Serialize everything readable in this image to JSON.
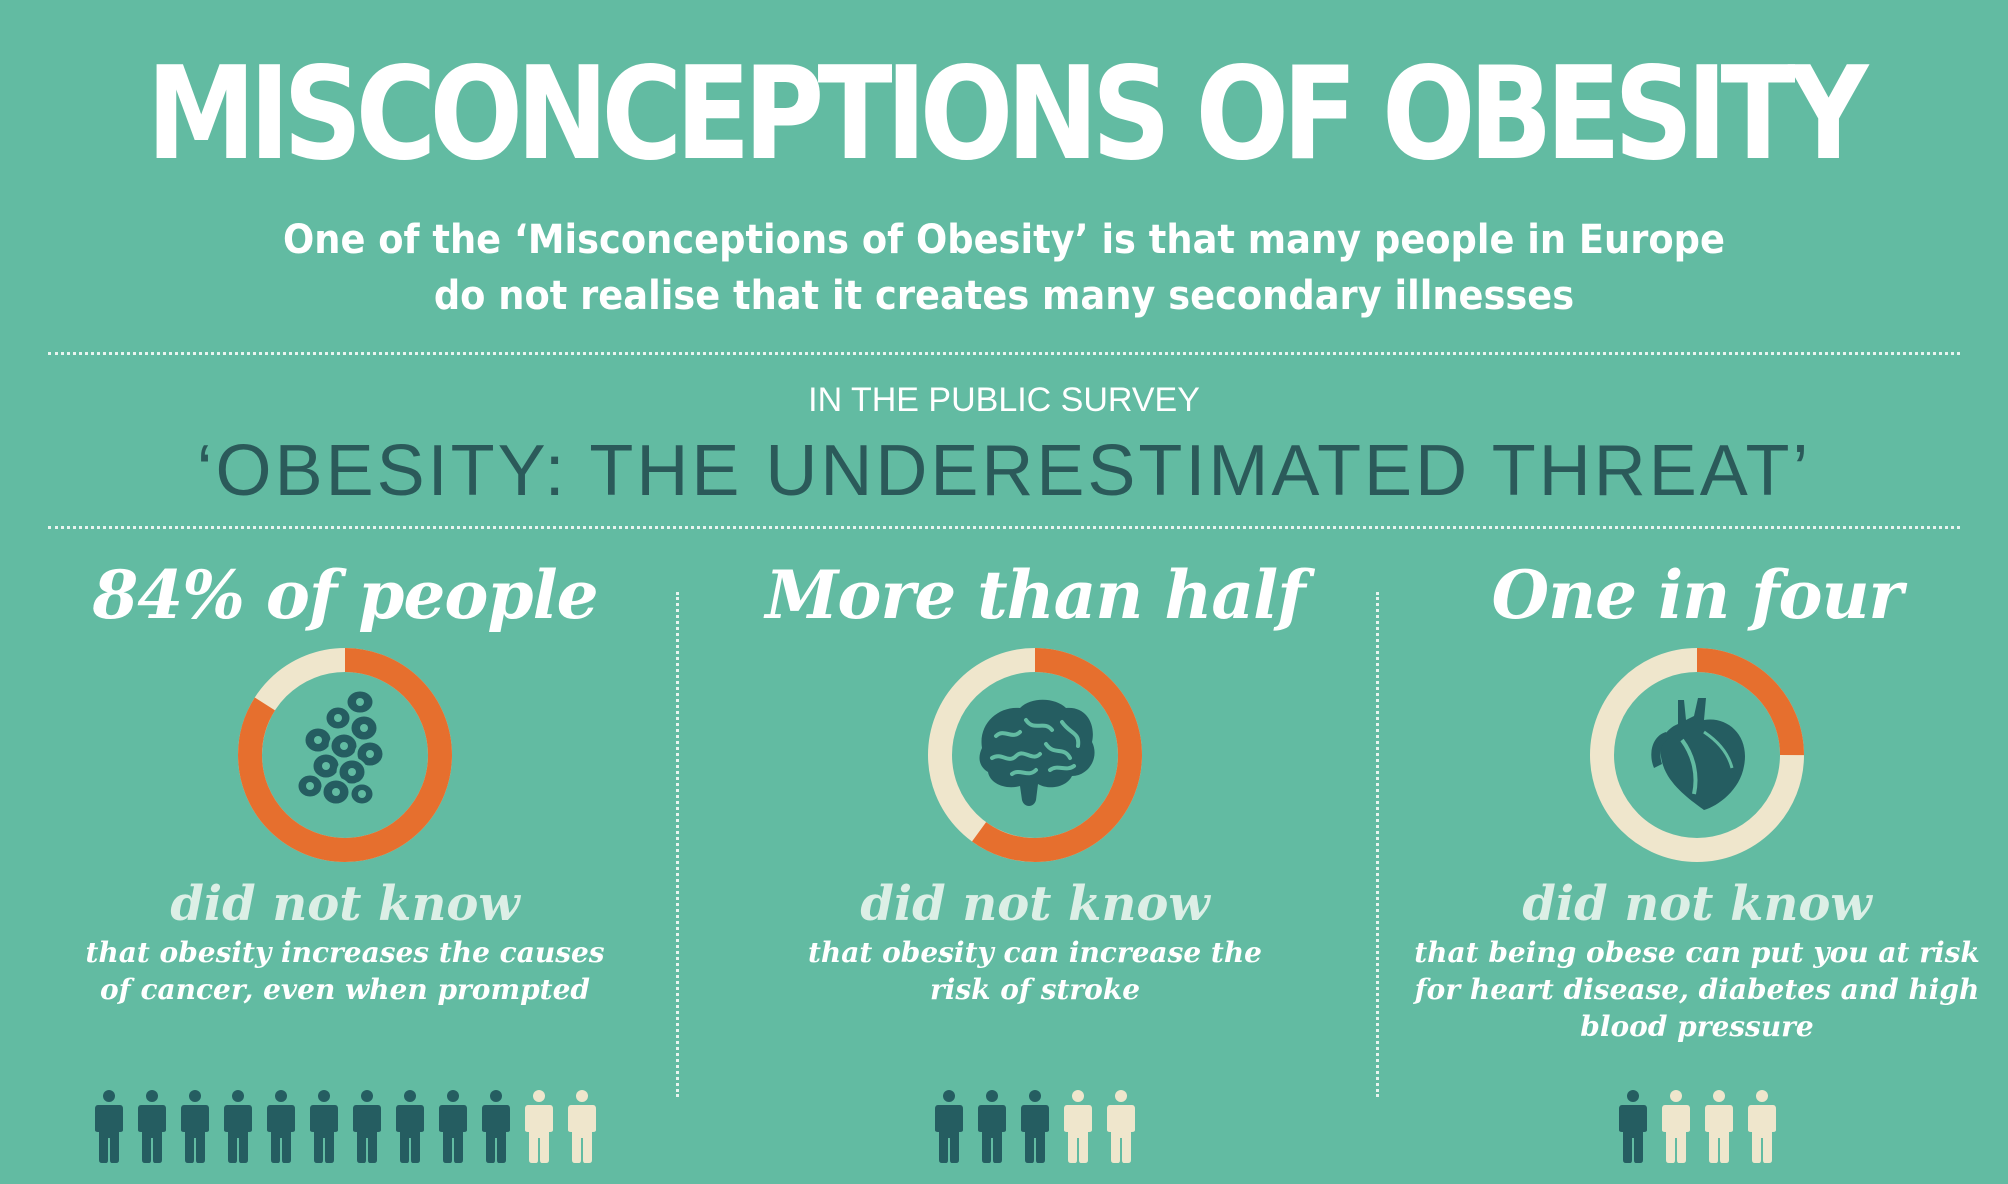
{
  "header": {
    "title": "MISCONCEPTIONS OF OBESITY",
    "subtitle": "One of the ‘Misconceptions of Obesity’ is that many people in Europe do not realise that it creates many secondary illnesses"
  },
  "survey": {
    "intro": "IN THE PUBLIC SURVEY",
    "name": "‘OBESITY: THE UNDERESTIMATED THREAT’"
  },
  "colors": {
    "background": "#62bba2",
    "accent_orange": "#e66f2e",
    "cream": "#efe6cc",
    "dark_teal": "#255d61"
  },
  "stats": [
    {
      "headline": "84% of people",
      "fraction": 0.84,
      "icon": "cancer-cells-icon",
      "did_not_know": "did not know",
      "description": "that obesity increases the causes of cancer, even when prompted",
      "people_highlighted": 10,
      "people_total": 12
    },
    {
      "headline": "More than half",
      "fraction": 0.6,
      "icon": "brain-icon",
      "did_not_know": "did not know",
      "description": "that obesity can increase the risk of stroke",
      "people_highlighted": 3,
      "people_total": 5
    },
    {
      "headline": "One in four",
      "fraction": 0.25,
      "icon": "heart-icon",
      "did_not_know": "did not know",
      "description": "that being obese can put you at risk for heart disease, diabetes and high blood pressure",
      "people_highlighted": 1,
      "people_total": 4
    }
  ]
}
